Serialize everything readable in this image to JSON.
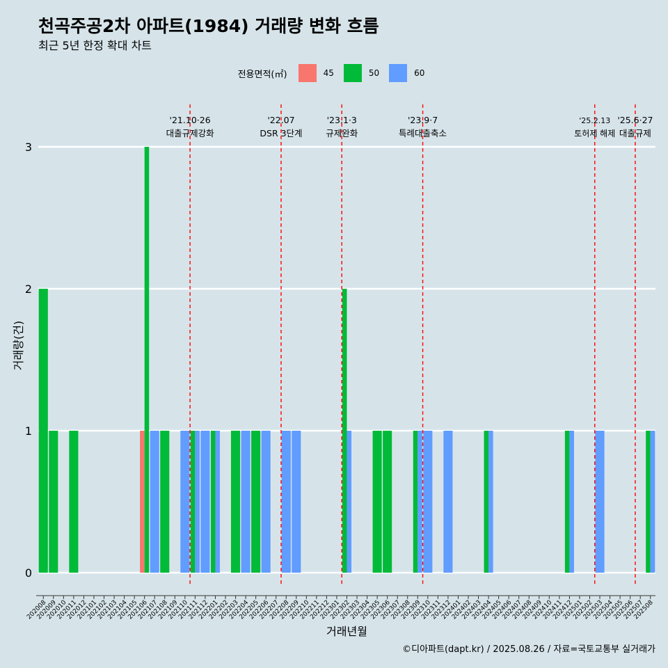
{
  "title": "천곡주공2차 아파트(1984) 거래량 변화 흐름",
  "subtitle": "최근 5년 한정 확대 차트",
  "caption": "©디아파트(dapt.kr) / 2025.08.26 / 자료=국토교통부 실거래가",
  "legend": {
    "title": "전용면적(㎡)",
    "items": [
      {
        "label": "45",
        "color": "#f8766d"
      },
      {
        "label": "50",
        "color": "#00ba38"
      },
      {
        "label": "60",
        "color": "#619cff"
      }
    ]
  },
  "chart_data": {
    "type": "bar",
    "xlabel": "거래년월",
    "ylabel": "거래량(건)",
    "ylim": [
      0,
      3
    ],
    "yticks": [
      0,
      1,
      2,
      3
    ],
    "grid": true,
    "categories": [
      "202008",
      "202009",
      "202010",
      "202011",
      "202012",
      "202101",
      "202102",
      "202103",
      "202104",
      "202105",
      "202106",
      "202107",
      "202108",
      "202109",
      "202110",
      "202111",
      "202112",
      "202201",
      "202202",
      "202203",
      "202204",
      "202205",
      "202206",
      "202207",
      "202208",
      "202209",
      "202210",
      "202211",
      "202212",
      "202301",
      "202302",
      "202303",
      "202304",
      "202305",
      "202306",
      "202307",
      "202308",
      "202309",
      "202310",
      "202311",
      "202312",
      "202401",
      "202402",
      "202403",
      "202404",
      "202405",
      "202406",
      "202407",
      "202408",
      "202409",
      "202410",
      "202411",
      "202412",
      "202501",
      "202502",
      "202503",
      "202504",
      "202505",
      "202506",
      "202507",
      "202508"
    ],
    "series": [
      {
        "name": "45",
        "color": "#f8766d",
        "values": [
          0,
          0,
          0,
          0,
          0,
          0,
          0,
          0,
          0,
          0,
          1,
          0,
          0,
          0,
          0,
          0,
          0,
          0,
          0,
          0,
          0,
          0,
          0,
          0,
          0,
          0,
          0,
          0,
          0,
          0,
          0,
          0,
          0,
          0,
          0,
          0,
          0,
          0,
          0,
          0,
          0,
          0,
          0,
          0,
          0,
          0,
          0,
          0,
          0,
          0,
          0,
          0,
          0,
          0,
          0,
          0,
          0,
          0,
          0,
          0,
          0
        ]
      },
      {
        "name": "50",
        "color": "#00ba38",
        "values": [
          2,
          1,
          0,
          1,
          0,
          0,
          0,
          0,
          0,
          0,
          3,
          0,
          1,
          0,
          0,
          1,
          0,
          1,
          0,
          1,
          0,
          1,
          0,
          0,
          0,
          0,
          0,
          0,
          0,
          0,
          2,
          0,
          0,
          1,
          1,
          0,
          0,
          1,
          0,
          0,
          0,
          0,
          0,
          0,
          1,
          0,
          0,
          0,
          0,
          0,
          0,
          0,
          1,
          0,
          0,
          0,
          0,
          0,
          0,
          0,
          1
        ]
      },
      {
        "name": "60",
        "color": "#619cff",
        "values": [
          0,
          0,
          0,
          0,
          0,
          0,
          0,
          0,
          0,
          0,
          0,
          1,
          0,
          0,
          1,
          1,
          1,
          1,
          0,
          0,
          1,
          0,
          1,
          0,
          1,
          1,
          0,
          0,
          0,
          0,
          1,
          0,
          0,
          0,
          0,
          0,
          0,
          1,
          1,
          0,
          1,
          0,
          0,
          0,
          1,
          0,
          0,
          0,
          0,
          0,
          0,
          0,
          1,
          0,
          0,
          1,
          0,
          0,
          0,
          0,
          1
        ]
      }
    ],
    "events": [
      {
        "label1": "'21.10·26",
        "label2": "대출규제강화",
        "position": 14.5
      },
      {
        "label1": "'22.07",
        "label2": "DSR 3단계",
        "position": 23.5
      },
      {
        "label1": "'23.1·3",
        "label2": "규제완화",
        "position": 29.5
      },
      {
        "label1": "'23.9·7",
        "label2": "특례대출축소",
        "position": 37.5
      },
      {
        "label1": "'25.2.13",
        "label2": "토허제 해제",
        "position": 54.5
      },
      {
        "label1": "'25.6·27",
        "label2": "대출규제",
        "position": 58.5
      }
    ]
  }
}
